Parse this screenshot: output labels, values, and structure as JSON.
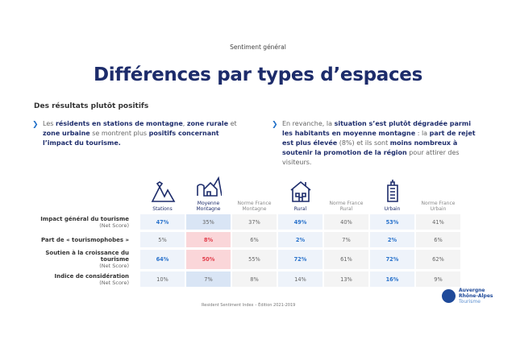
{
  "header": {
    "section": "Sentiment général",
    "title": "Différences par types d’espaces",
    "subtitle": "Des résultats plutôt positifs"
  },
  "bullets": [
    {
      "segments": [
        [
          "n",
          "Les "
        ],
        [
          "b",
          "résidents en stations de montagne"
        ],
        [
          "n",
          ", "
        ],
        [
          "b",
          "zone rurale"
        ],
        [
          "n",
          " et "
        ],
        [
          "b",
          "zone urbaine"
        ],
        [
          "n",
          " se montrent plus "
        ],
        [
          "b",
          "positifs concernant l’impact du tourisme."
        ]
      ]
    },
    {
      "segments": [
        [
          "n",
          "En revanche, la "
        ],
        [
          "b",
          "situation s’est plutôt dégradée parmi les habitants en moyenne montagne"
        ],
        [
          "n",
          " : la "
        ],
        [
          "b",
          "part de rejet est plus élevée"
        ],
        [
          "n",
          " (8%) et ils sont "
        ],
        [
          "b",
          "moins nombreux à soutenir la promotion de la région"
        ],
        [
          "n",
          " pour attirer des visiteurs."
        ]
      ]
    }
  ],
  "table": {
    "columns": [
      {
        "label": "Stations",
        "icon": "mountain-peaks-icon",
        "main": true
      },
      {
        "label": "Moyenne Montagne",
        "icon": "mountain-village-icon",
        "main": true
      },
      {
        "label": "Norme France Montagne",
        "main": false
      },
      {
        "label": "Rural",
        "icon": "house-icon",
        "main": true
      },
      {
        "label": "Norme France Rural",
        "main": false
      },
      {
        "label": "Urbain",
        "icon": "building-icon",
        "main": true
      },
      {
        "label": "Norme France Urbain",
        "main": false
      }
    ],
    "rows": [
      {
        "label": "Impact général du tourisme",
        "note": "(Net Score)",
        "values": [
          "47%",
          "35%",
          "37%",
          "49%",
          "40%",
          "53%",
          "41%"
        ],
        "styles": [
          "bb",
          "hb",
          "n",
          "bb",
          "n",
          "bb",
          "n"
        ]
      },
      {
        "label": "Part de « tourismophobes »",
        "note": "",
        "values": [
          "5%",
          "8%",
          "6%",
          "2%",
          "7%",
          "2%",
          "6%"
        ],
        "styles": [
          "c",
          "hp",
          "n",
          "bb",
          "n",
          "bb",
          "n"
        ]
      },
      {
        "label": "Soutien à la croissance du tourisme",
        "note": "(Net Score)",
        "values": [
          "64%",
          "50%",
          "55%",
          "72%",
          "61%",
          "72%",
          "62%"
        ],
        "styles": [
          "bb",
          "hp",
          "n",
          "bb",
          "n",
          "bb",
          "n"
        ]
      },
      {
        "label": "Indice de considération",
        "note": "(Net Score)",
        "values": [
          "10%",
          "7%",
          "8%",
          "14%",
          "13%",
          "16%",
          "9%"
        ],
        "styles": [
          "c",
          "hb",
          "n",
          "c",
          "n",
          "bb",
          "n"
        ]
      }
    ]
  },
  "footer": {
    "source": "Resident Sentiment Index – Édition 2021-2019",
    "logo": [
      "Auvergne",
      "Rhône-Alpes",
      "Tourisme"
    ]
  },
  "colors": {
    "navy": "#1d2c6b",
    "accent": "#2a73cc",
    "alert": "#e23d4b"
  }
}
